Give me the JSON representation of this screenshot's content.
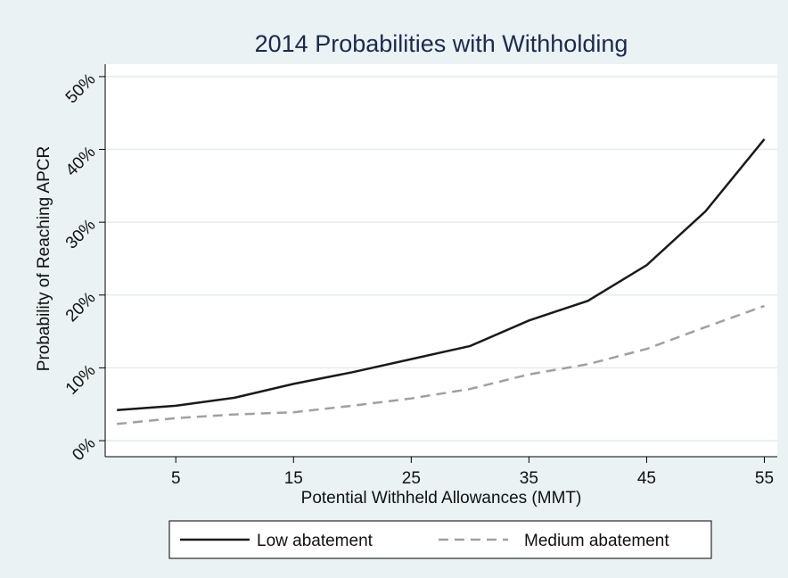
{
  "chart_data": {
    "type": "line",
    "title": "2014 Probabilities with Withholding",
    "x_label": "Potential Withheld Allowances (MMT)",
    "y_label": "Probability of Reaching APCR",
    "x": [
      0,
      5,
      10,
      15,
      20,
      25,
      30,
      35,
      40,
      45,
      50,
      55
    ],
    "series": [
      {
        "name": "Low abatement",
        "color": "#1a1a1a",
        "dash": "solid",
        "values": [
          4.2,
          4.8,
          5.9,
          7.8,
          9.4,
          11.2,
          13.0,
          16.5,
          19.2,
          24.1,
          31.5,
          41.4
        ]
      },
      {
        "name": "Medium abatement",
        "color": "#a0a0a0",
        "dash": "dashed",
        "values": [
          2.3,
          3.1,
          3.6,
          3.9,
          4.8,
          5.8,
          7.1,
          9.1,
          10.5,
          12.6,
          15.6,
          18.5
        ]
      }
    ],
    "xlim": [
      -1,
      56.1
    ],
    "ylim": [
      -2.2,
      51.7
    ],
    "xticks": [
      5,
      15,
      25,
      35,
      45,
      55
    ],
    "yticks": [
      {
        "value": 0,
        "label": "0%"
      },
      {
        "value": 10,
        "label": "10%"
      },
      {
        "value": 20,
        "label": "20%"
      },
      {
        "value": 30,
        "label": "30%"
      },
      {
        "value": 40,
        "label": "40%"
      },
      {
        "value": 50,
        "label": "50%"
      }
    ],
    "grid": true,
    "legend": "bottom"
  }
}
